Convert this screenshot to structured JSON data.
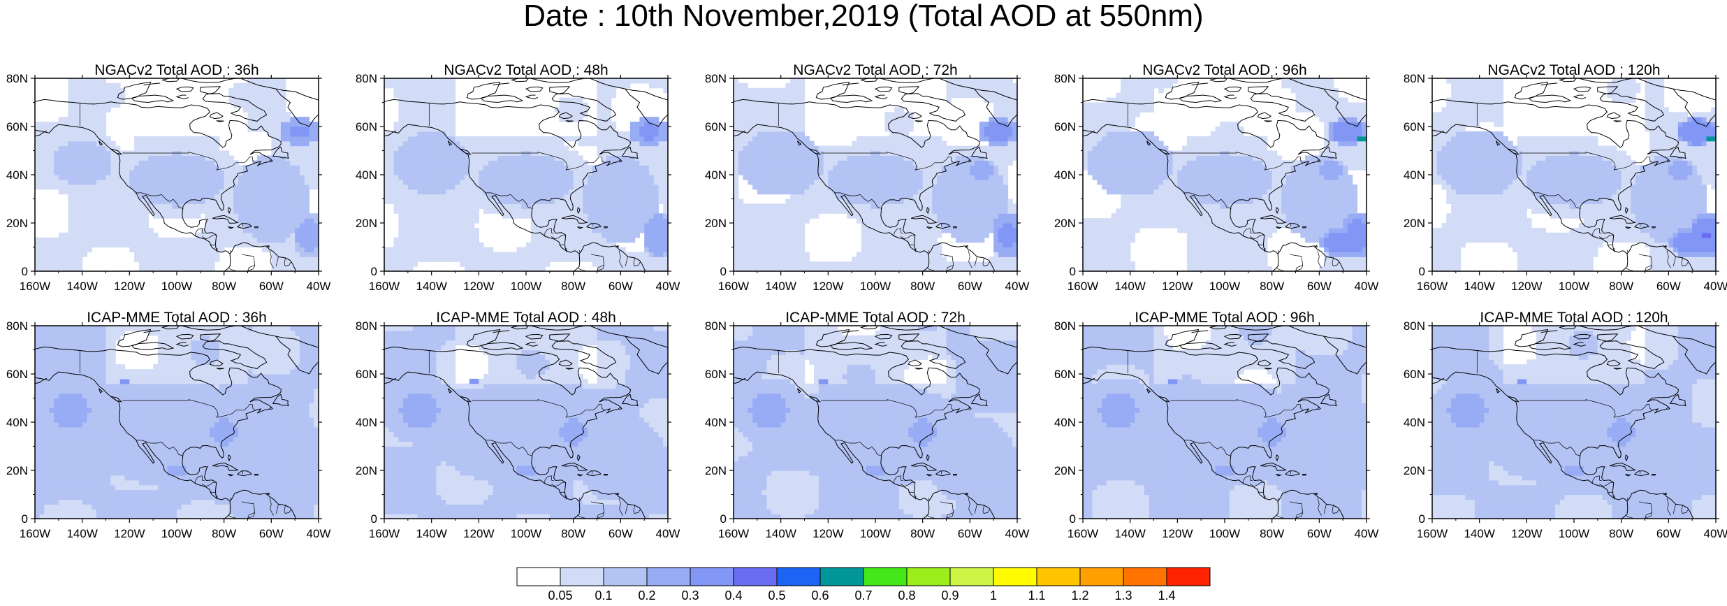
{
  "title": "Date : 10th November,2019 (Total AOD at 550nm)",
  "panels": [
    {
      "title": "NGACv2 Total AOD : 36h"
    },
    {
      "title": "NGACv2 Total AOD : 48h"
    },
    {
      "title": "NGACv2 Total AOD : 72h"
    },
    {
      "title": "NGACv2 Total AOD : 96h"
    },
    {
      "title": "NGACv2 Total AOD : 120h"
    },
    {
      "title": "ICAP-MME Total AOD : 36h"
    },
    {
      "title": "ICAP-MME Total AOD : 48h"
    },
    {
      "title": "ICAP-MME Total AOD : 72h"
    },
    {
      "title": "ICAP-MME Total AOD : 96h"
    },
    {
      "title": "ICAP-MME Total AOD : 120h"
    }
  ],
  "map": {
    "lon_range": [
      -160,
      -40
    ],
    "lat_range": [
      0,
      80
    ],
    "lon_ticks": [
      "160W",
      "140W",
      "120W",
      "100W",
      "80W",
      "60W",
      "40W"
    ],
    "lat_ticks": [
      "0",
      "20N",
      "40N",
      "60N",
      "80N"
    ]
  },
  "colorbar": {
    "labels": [
      "0.05",
      "0.1",
      "0.2",
      "0.3",
      "0.4",
      "0.5",
      "0.6",
      "0.7",
      "0.8",
      "0.9",
      "1",
      "1.1",
      "1.2",
      "1.3",
      "1.4"
    ],
    "colors": [
      "#ffffff",
      "#d3dcf7",
      "#b3c3f4",
      "#98acf5",
      "#8196f5",
      "#6a6cf2",
      "#1e64f4",
      "#00969a",
      "#44e818",
      "#9aee1c",
      "#cdf545",
      "#fffb00",
      "#ffc500",
      "#ffa000",
      "#ff7300",
      "#ff2400"
    ]
  }
}
